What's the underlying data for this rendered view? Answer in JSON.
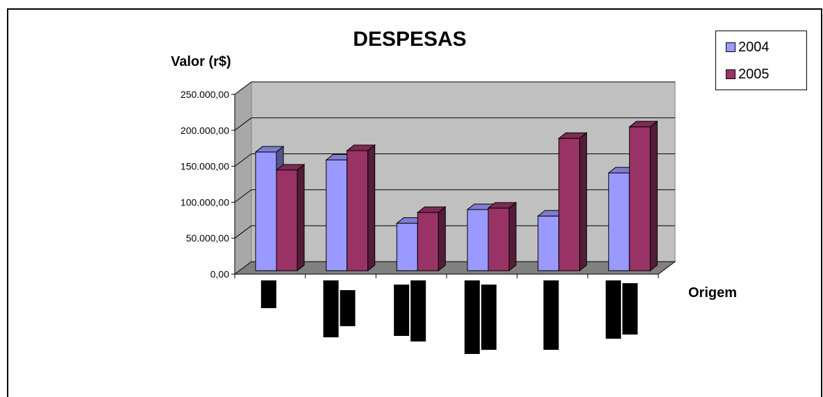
{
  "chart_data": {
    "type": "bar",
    "title": "DESPESAS",
    "ylabel": "Valor (r$)",
    "xlabel": "Origem",
    "categories": [
      "",
      "",
      "",
      "",
      "",
      ""
    ],
    "ylim": [
      0,
      250000
    ],
    "y_ticks": [
      {
        "value": 0,
        "label": "0,00"
      },
      {
        "value": 50000,
        "label": "50.000,00"
      },
      {
        "value": 100000,
        "label": "100.000,00"
      },
      {
        "value": 150000,
        "label": "150.000,00"
      },
      {
        "value": 200000,
        "label": "200.000,00"
      },
      {
        "value": 250000,
        "label": "250.000,00"
      }
    ],
    "grid": true,
    "legend_position": "top-right",
    "series": [
      {
        "name": "2004",
        "color": "#9999ff",
        "values": [
          165000,
          154000,
          66000,
          85000,
          76000,
          136000
        ]
      },
      {
        "name": "2005",
        "color": "#993366",
        "values": [
          140000,
          167000,
          81000,
          87000,
          184000,
          200000
        ]
      }
    ]
  }
}
